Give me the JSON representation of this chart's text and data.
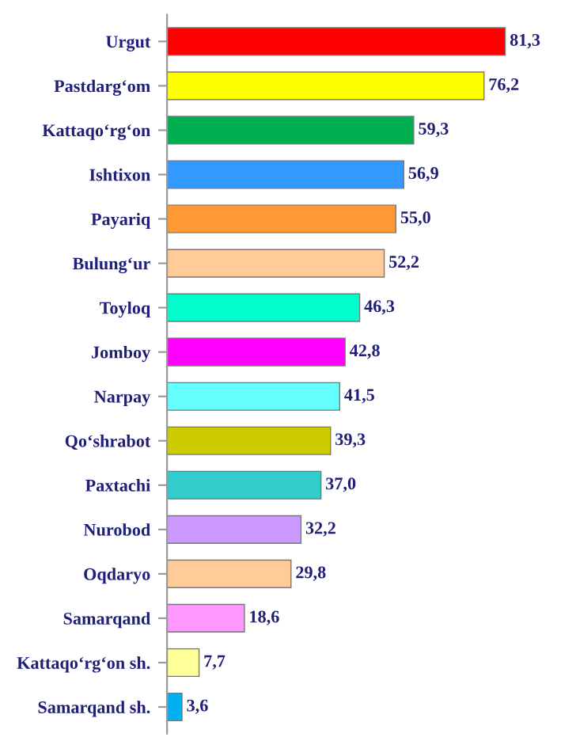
{
  "chart_data": {
    "type": "bar",
    "orientation": "horizontal",
    "categories": [
      "Urgut",
      "Pastdarg‘om",
      "Kattaqo‘rg‘on",
      "Ishtixon",
      "Payariq",
      "Bulung‘ur",
      "Toyloq",
      "Jomboy",
      "Narpay",
      "Qo‘shrabot",
      "Paxtachi",
      "Nurobod",
      "Oqdaryo",
      "Samarqand",
      "Kattaqo‘rg‘on sh.",
      "Samarqand sh."
    ],
    "values": [
      81.3,
      76.2,
      59.3,
      56.9,
      55.0,
      52.2,
      46.3,
      42.8,
      41.5,
      39.3,
      37.0,
      32.2,
      29.8,
      18.6,
      7.7,
      3.6
    ],
    "value_labels": [
      "81,3",
      "76,2",
      "59,3",
      "56,9",
      "55,0",
      "52,2",
      "46,3",
      "42,8",
      "41,5",
      "39,3",
      "37,0",
      "32,2",
      "29,8",
      "18,6",
      "7,7",
      "3,6"
    ],
    "colors": [
      "#ff0000",
      "#ffff00",
      "#00b050",
      "#3399ff",
      "#ff9933",
      "#ffcc99",
      "#00ffcc",
      "#ff00ff",
      "#66ffff",
      "#cccc00",
      "#33cccc",
      "#cc99ff",
      "#ffcc99",
      "#ff99ff",
      "#ffff99",
      "#00b0f0"
    ],
    "grid": false,
    "legend": false
  }
}
